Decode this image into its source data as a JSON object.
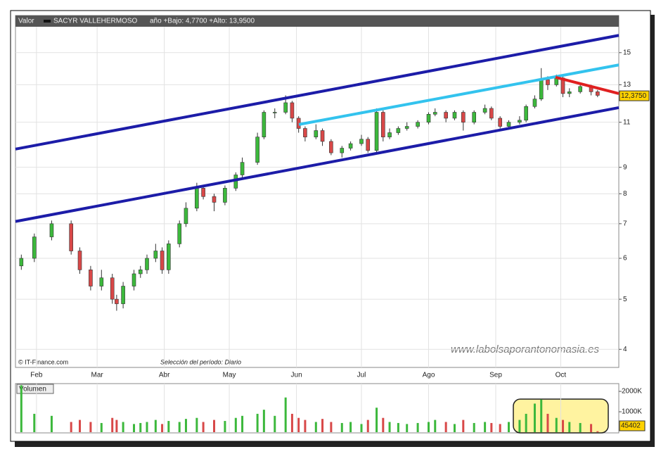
{
  "chart_data": {
    "type": "candlestick",
    "header_label": "Valor",
    "title": "SACYR VALLEHERMOSO",
    "subtitle": "año +Bajo: 4,7700 +Alto: 13,9500",
    "source": "© IT-Finance.com",
    "period_note": "Selección del período: Diario",
    "watermark": "www.labolsaporantonomasia.es",
    "log_y": true,
    "grid": true,
    "ylim": [
      3.69,
      17.7
    ],
    "yticks": [
      4,
      5,
      6,
      7,
      8,
      9,
      11,
      13,
      15
    ],
    "xlim": [
      22.3,
      300.8
    ],
    "xticks": [
      {
        "value": 32,
        "label": "Feb"
      },
      {
        "value": 60,
        "label": "Mar"
      },
      {
        "value": 91,
        "label": "Abr"
      },
      {
        "value": 121,
        "label": "May"
      },
      {
        "value": 152,
        "label": "Jun"
      },
      {
        "value": 182,
        "label": "Jul"
      },
      {
        "value": 213,
        "label": "Ago"
      },
      {
        "value": 244,
        "label": "Sep"
      },
      {
        "value": 274,
        "label": "Oct"
      }
    ],
    "x": [
      25,
      31,
      39,
      48,
      52,
      57,
      62,
      67,
      69,
      72,
      77,
      80,
      83,
      87,
      90,
      93,
      98,
      101,
      106,
      109,
      114,
      119,
      124,
      127,
      134,
      137,
      142,
      147,
      150,
      153,
      156,
      161,
      164,
      168,
      173,
      177,
      182,
      185,
      189,
      192,
      195,
      199,
      203,
      208,
      213,
      216,
      221,
      225,
      229,
      234,
      239,
      242,
      246,
      250,
      255,
      258,
      262,
      265,
      268,
      272,
      275,
      278,
      283,
      288,
      291
    ],
    "open": [
      5.8,
      6.0,
      6.6,
      7.0,
      6.2,
      5.7,
      5.3,
      5.5,
      5.0,
      4.9,
      5.3,
      5.6,
      5.7,
      6.0,
      6.2,
      5.7,
      6.4,
      7.0,
      7.5,
      8.2,
      7.9,
      7.7,
      8.2,
      8.7,
      9.2,
      10.3,
      11.5,
      11.5,
      12.0,
      11.2,
      10.7,
      10.3,
      10.6,
      10.1,
      9.6,
      9.8,
      10.0,
      10.2,
      9.7,
      11.5,
      10.3,
      10.5,
      10.7,
      10.8,
      11.0,
      11.4,
      11.5,
      11.2,
      11.5,
      11.0,
      11.5,
      11.7,
      11.2,
      10.8,
      11.0,
      11.1,
      11.8,
      12.2,
      13.3,
      13.0,
      13.4,
      12.5,
      12.6,
      12.9,
      12.6
    ],
    "high": [
      6.1,
      6.7,
      7.1,
      7.1,
      6.3,
      5.8,
      5.7,
      5.6,
      5.1,
      5.4,
      5.7,
      5.8,
      6.1,
      6.4,
      6.3,
      6.5,
      7.1,
      7.7,
      8.4,
      8.3,
      8.0,
      8.3,
      8.8,
      9.4,
      10.5,
      11.6,
      11.7,
      12.4,
      12.1,
      11.3,
      10.8,
      10.9,
      10.7,
      10.2,
      9.9,
      10.1,
      10.4,
      10.3,
      11.7,
      11.6,
      10.7,
      10.8,
      11.0,
      11.1,
      11.5,
      11.7,
      11.6,
      11.6,
      11.6,
      11.6,
      11.9,
      11.8,
      11.3,
      11.1,
      11.3,
      11.9,
      12.4,
      14.0,
      13.5,
      13.6,
      13.5,
      12.8,
      13.1,
      13.0,
      12.7
    ],
    "low": [
      5.7,
      5.9,
      6.5,
      6.1,
      5.6,
      5.2,
      5.2,
      4.9,
      4.75,
      4.8,
      5.2,
      5.5,
      5.6,
      5.9,
      5.6,
      5.6,
      6.3,
      6.9,
      7.4,
      7.8,
      7.4,
      7.6,
      8.1,
      8.6,
      9.1,
      10.2,
      11.2,
      11.4,
      11.0,
      10.5,
      10.1,
      10.2,
      9.9,
      9.5,
      9.4,
      9.7,
      9.9,
      9.6,
      9.6,
      10.1,
      10.2,
      10.4,
      10.6,
      10.7,
      10.9,
      11.3,
      11.0,
      11.1,
      10.6,
      10.9,
      11.4,
      11.1,
      10.7,
      10.7,
      10.9,
      11.0,
      11.7,
      12.1,
      12.7,
      12.9,
      12.3,
      12.3,
      12.5,
      12.4,
      12.3
    ],
    "close": [
      6.0,
      6.6,
      7.0,
      6.2,
      5.7,
      5.3,
      5.5,
      5.0,
      4.9,
      5.3,
      5.6,
      5.7,
      6.0,
      6.2,
      5.7,
      6.4,
      7.0,
      7.5,
      8.2,
      7.9,
      7.7,
      8.2,
      8.7,
      9.2,
      10.3,
      11.5,
      11.5,
      12.0,
      11.2,
      10.7,
      10.3,
      10.6,
      10.1,
      9.6,
      9.8,
      10.0,
      10.2,
      9.7,
      11.5,
      10.3,
      10.5,
      10.7,
      10.8,
      11.0,
      11.4,
      11.5,
      11.2,
      11.5,
      11.0,
      11.5,
      11.7,
      11.2,
      10.8,
      11.0,
      11.1,
      11.8,
      12.2,
      13.3,
      13.0,
      13.4,
      12.5,
      12.6,
      12.9,
      12.6,
      12.4
    ],
    "up_color": "#3cb83c",
    "down_color": "#d84848",
    "last_price": {
      "value": 12.375,
      "label": "12,3750"
    },
    "lines": [
      {
        "color": "#1c1ca8",
        "x": [
          22.3,
          300.8
        ],
        "y": [
          9.76,
          16.2
        ]
      },
      {
        "color": "#1c1ca8",
        "x": [
          22.3,
          300.8
        ],
        "y": [
          7.07,
          11.74
        ]
      },
      {
        "color": "#33c3ee",
        "x": [
          153.1,
          300.8
        ],
        "y": [
          10.89,
          14.2
        ]
      },
      {
        "color": "#e02020",
        "x": [
          271.6,
          300.8
        ],
        "y": [
          13.44,
          12.5
        ]
      }
    ],
    "volume": {
      "label": "Volumen",
      "ylim": [
        0,
        2380000
      ],
      "yticks": [
        {
          "value": 1000000,
          "label": "1000K"
        },
        {
          "value": 2000000,
          "label": "2000K"
        }
      ],
      "values": [
        2300000,
        900000,
        800000,
        500000,
        600000,
        500000,
        450000,
        700000,
        600000,
        500000,
        400000,
        450000,
        500000,
        600000,
        400000,
        550000,
        500000,
        650000,
        700000,
        500000,
        600000,
        550000,
        700000,
        800000,
        900000,
        1100000,
        800000,
        1700000,
        900000,
        700000,
        600000,
        500000,
        650000,
        500000,
        450000,
        500000,
        400000,
        600000,
        1200000,
        700000,
        500000,
        450000,
        400000,
        450000,
        500000,
        600000,
        500000,
        400000,
        600000,
        450000,
        500000,
        450000,
        400000,
        500000,
        600000,
        900000,
        1400000,
        1600000,
        900000,
        700000,
        600000,
        500000,
        450000,
        400000,
        45402
      ]
    }
  }
}
